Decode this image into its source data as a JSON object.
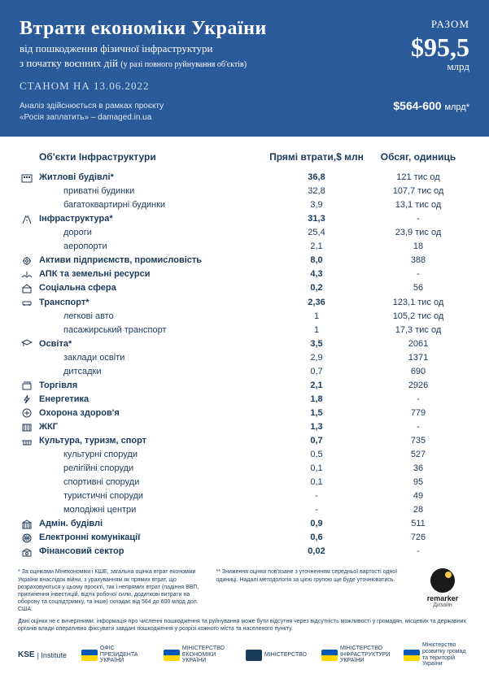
{
  "colors": {
    "header_bg": "#2a5a9a",
    "header_text": "#ffffff",
    "body_text": "#1a3a5c",
    "accent_yellow": "#f7c948"
  },
  "header": {
    "title": "Втрати економіки України",
    "subtitle_line1": "від пошкодження фізичної інфраструктури",
    "subtitle_line2": "з початку воєнних дій",
    "subtitle_note": "(у разі повного руйнування об'єктів)",
    "asof": "СТАНОМ НА 13.06.2022",
    "project_line1": "Аналіз здійснюється в рамках проєкту",
    "project_line2": "«Росія заплатить» – damaged.in.ua",
    "total_label": "РАЗОМ",
    "total_value": "$95,5",
    "total_unit": "млрд",
    "total_range": "$564-600",
    "total_range_unit": "млрд*"
  },
  "thead": {
    "name": "Об'єкти Інфраструктури",
    "loss": "Прямі втрати,$ млн",
    "vol": "Обсяг, одиниць"
  },
  "rows": [
    {
      "type": "cat",
      "icon": "building",
      "name": "Житлові будівлі*",
      "loss": "36,8",
      "vol": "121 тис од"
    },
    {
      "type": "sub",
      "name": "приватні будинки",
      "loss": "32,8",
      "vol": "107,7 тис од"
    },
    {
      "type": "sub",
      "name": "багатоквартирні будинки",
      "loss": "3,9",
      "vol": "13,1 тис од"
    },
    {
      "type": "cat",
      "icon": "road",
      "name": "Інфраструктура*",
      "loss": "31,3",
      "vol": "-"
    },
    {
      "type": "sub",
      "name": "дороги",
      "loss": "25,4",
      "vol": "23,9 тис од"
    },
    {
      "type": "sub",
      "name": "аеропорти",
      "loss": "2,1",
      "vol": "18"
    },
    {
      "type": "cat",
      "icon": "factory",
      "name": "Активи підприємств, промисловість",
      "loss": "8,0",
      "vol": "388"
    },
    {
      "type": "cat",
      "icon": "field",
      "name": "АПК та земельні ресурси",
      "loss": "4,3",
      "vol": "-"
    },
    {
      "type": "cat",
      "icon": "civic",
      "name": "Соціальна сфера",
      "loss": "0,2",
      "vol": "56"
    },
    {
      "type": "cat",
      "icon": "car",
      "name": "Транспорт*",
      "loss": "2,36",
      "vol": "123,1 тис од"
    },
    {
      "type": "sub",
      "name": "легкові авто",
      "loss": "1",
      "vol": "105,2 тис од"
    },
    {
      "type": "sub",
      "name": "пасажирський транспорт",
      "loss": "1",
      "vol": "17,3 тис од"
    },
    {
      "type": "cat",
      "icon": "grad",
      "name": "Освіта*",
      "loss": "3,5",
      "vol": "2061"
    },
    {
      "type": "sub",
      "name": "заклади освіти",
      "loss": "2,9",
      "vol": "1371"
    },
    {
      "type": "sub",
      "name": "дитсадки",
      "loss": "0,7",
      "vol": "690"
    },
    {
      "type": "cat",
      "icon": "shop",
      "name": "Торгівля",
      "loss": "2,1",
      "vol": "2926"
    },
    {
      "type": "cat",
      "icon": "bolt",
      "name": "Енергетика",
      "loss": "1,8",
      "vol": "-"
    },
    {
      "type": "cat",
      "icon": "health",
      "name": "Охорона здоров'я",
      "loss": "1,5",
      "vol": "779"
    },
    {
      "type": "cat",
      "icon": "housing",
      "name": "ЖКГ",
      "loss": "1,3",
      "vol": "-"
    },
    {
      "type": "cat",
      "icon": "culture",
      "name": "Культура, туризм, спорт",
      "loss": "0,7",
      "vol": "735"
    },
    {
      "type": "sub",
      "name": "культурні споруди",
      "loss": "0,5",
      "vol": "527"
    },
    {
      "type": "sub",
      "name": "релігійні споруди",
      "loss": "0,1",
      "vol": "36"
    },
    {
      "type": "sub",
      "name": "спортивні споруди",
      "loss": "0,1",
      "vol": "95"
    },
    {
      "type": "sub",
      "name": "туристичні споруди",
      "loss": "-",
      "vol": "49"
    },
    {
      "type": "sub",
      "name": "молодіжні центри",
      "loss": "-",
      "vol": "28"
    },
    {
      "type": "cat",
      "icon": "admin",
      "name": "Адмін. будівлі",
      "loss": "0,9",
      "vol": "511"
    },
    {
      "type": "cat",
      "icon": "comm",
      "name": "Електронні комунікації",
      "loss": "0,6",
      "vol": "726"
    },
    {
      "type": "cat",
      "icon": "finance",
      "name": "Фінансовий сектор",
      "loss": "0,02",
      "vol": "-"
    }
  ],
  "footnotes": {
    "fn1": "* За оцінками Мінекономіки і КШЕ, загальна оцінка втрат економіки України внаслідок війни, з урахуванням як прямих втрат, що розраховуються у цьому проєкті, так і непрямих втрат (падіння ВВП, припинення інвестицій, відтік робочої сили, додаткові витрати на оборону та соцпідтримку, та інше) складає від 564 до 600 млрд дол. США.",
    "fn2": "** Зниження оцінки пов'язане з уточненням середньої вартості одної одиниці. Надалі методологія за цією групою ще буде уточнюватись.",
    "fn3": "Дані оцінки не є вичерпними: інформація про численні пошкодження та руйнування може бути відсутня через відсутність можливості у громадян, місцевих та державних органів влади оперативно фіксувати завдані пошкодження у розрізі кожного міста та населеного пункту."
  },
  "remarker": {
    "name": "remarker",
    "sub": "Дизайн"
  },
  "logos": [
    {
      "text": "KSE",
      "sub": "Institute",
      "color": ""
    },
    {
      "text": "ОФІС ПРЕЗИДЕНТА УКРАЇНИ",
      "color": "flag"
    },
    {
      "text": "МІНІСТЕРСТВО ЕКОНОМІКИ УКРАЇНИ",
      "color": "flag"
    },
    {
      "text": "МІНІСТЕРСТВО",
      "color": "#1a3a5c"
    },
    {
      "text": "МІНІСТЕРСТВО ІНФРАСТРУКТУРИ УКРАЇНИ",
      "color": "flag"
    },
    {
      "text": "Міністерство розвитку громад та територій України",
      "color": "flag"
    }
  ]
}
